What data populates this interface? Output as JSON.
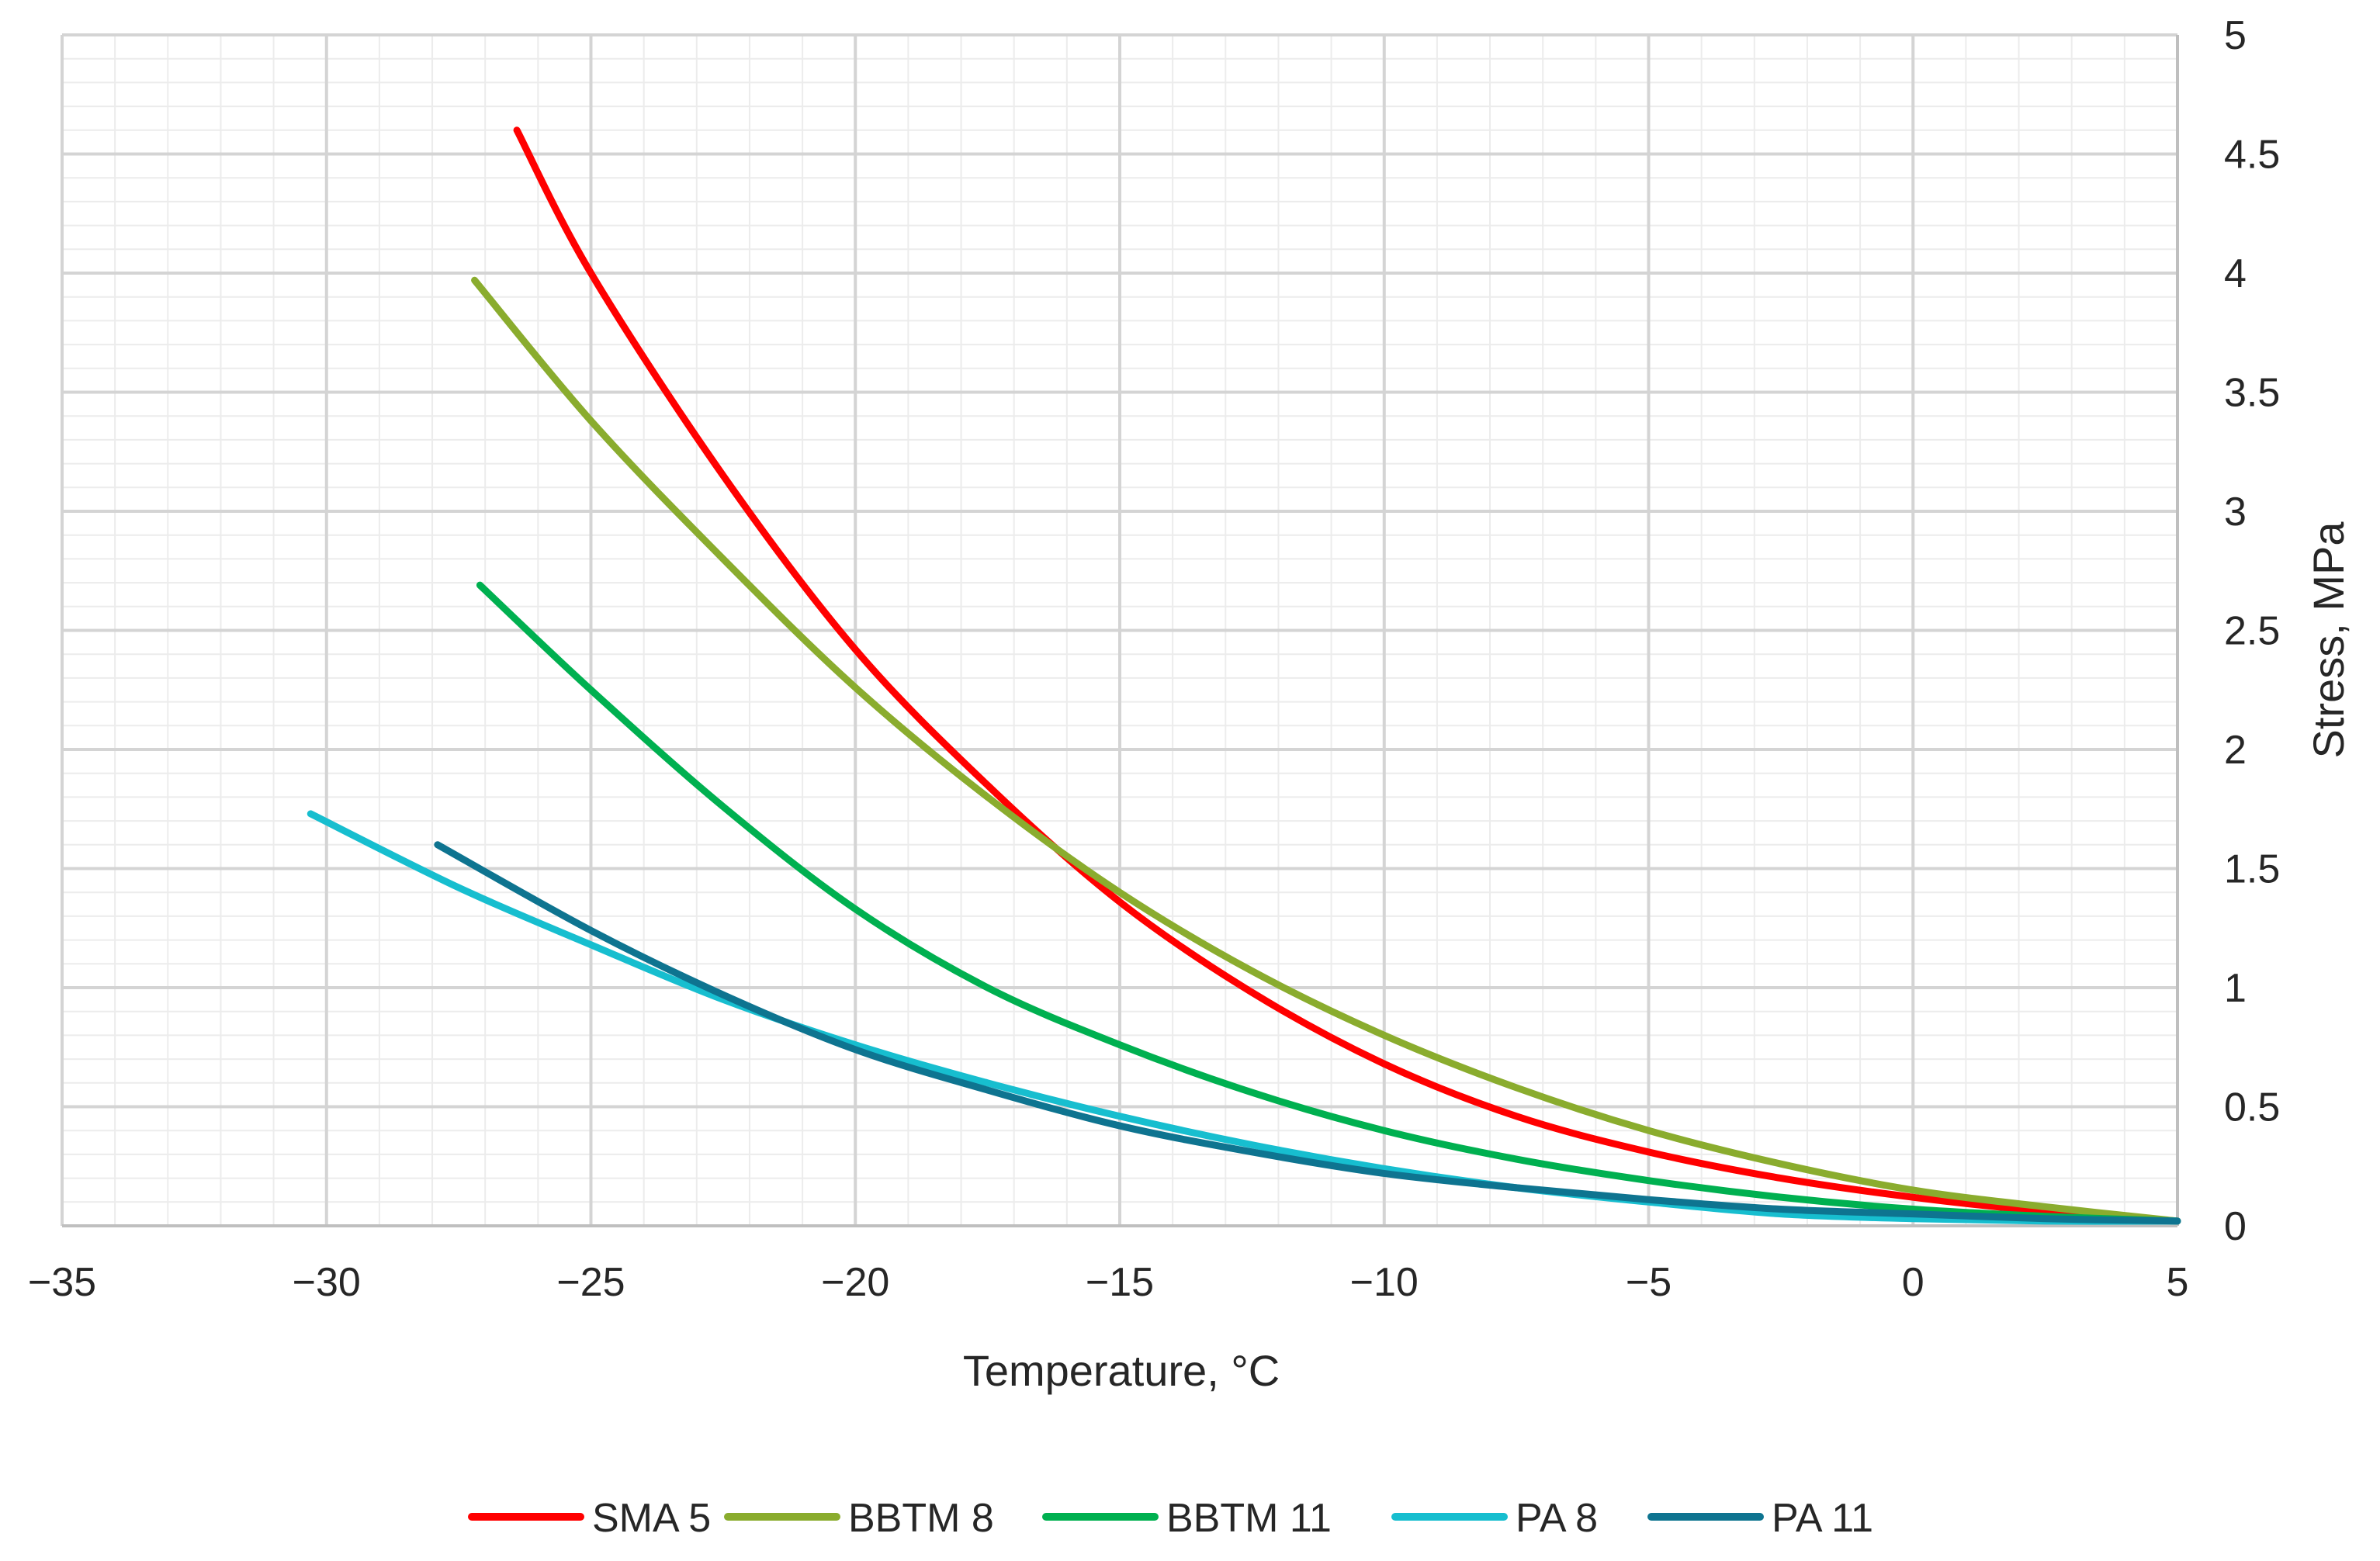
{
  "chart_data": {
    "type": "line",
    "title": "",
    "xlabel": "Temperature, °C",
    "ylabel": "Stress, MPa",
    "xlim": [
      -35,
      5
    ],
    "ylim": [
      0,
      5
    ],
    "x_ticks": [
      -35,
      -30,
      -25,
      -20,
      -15,
      -10,
      -5,
      0,
      5
    ],
    "x_tick_labels": [
      "−35",
      "−30",
      "−25",
      "−20",
      "−15",
      "−10",
      "−5",
      "0",
      "5"
    ],
    "y_ticks": [
      0,
      0.5,
      1,
      1.5,
      2,
      2.5,
      3,
      3.5,
      4,
      4.5,
      5
    ],
    "y_tick_labels": [
      "0",
      "0.5",
      "1",
      "1.5",
      "2",
      "2.5",
      "3",
      "3.5",
      "4",
      "4.5",
      "5"
    ],
    "y_axis_side": "right",
    "grid": true,
    "minor_grid": true,
    "legend_position": "bottom",
    "series": [
      {
        "name": "SMA 5",
        "color": "#ff0000",
        "x": [
          -26.4,
          -25,
          -22.5,
          -20,
          -17.5,
          -15,
          -12.5,
          -10,
          -7.5,
          -5,
          -2.5,
          0,
          2.5,
          5
        ],
        "y": [
          4.6,
          4.0,
          3.15,
          2.42,
          1.85,
          1.36,
          0.98,
          0.68,
          0.46,
          0.31,
          0.2,
          0.12,
          0.06,
          0.02
        ]
      },
      {
        "name": "BBTM 8",
        "color": "#8aac2e",
        "x": [
          -27.2,
          -25,
          -22.5,
          -20,
          -17.5,
          -15,
          -12.5,
          -10,
          -7.5,
          -5,
          -2.5,
          0,
          2.5,
          5
        ],
        "y": [
          3.97,
          3.38,
          2.8,
          2.26,
          1.8,
          1.4,
          1.07,
          0.8,
          0.58,
          0.4,
          0.26,
          0.15,
          0.08,
          0.02
        ]
      },
      {
        "name": "BBTM 11",
        "color": "#00b050",
        "x": [
          -27.1,
          -25,
          -22.5,
          -20,
          -17.5,
          -15,
          -12.5,
          -10,
          -7.5,
          -5,
          -2.5,
          0,
          2.5,
          5
        ],
        "y": [
          2.69,
          2.25,
          1.76,
          1.33,
          1.0,
          0.76,
          0.56,
          0.4,
          0.28,
          0.19,
          0.12,
          0.07,
          0.04,
          0.02
        ]
      },
      {
        "name": "PA 8",
        "color": "#17becf",
        "x": [
          -30.3,
          -27.5,
          -25,
          -22.5,
          -20,
          -17.5,
          -15,
          -12.5,
          -10,
          -7.5,
          -5,
          -2.5,
          0,
          2.5,
          5
        ],
        "y": [
          1.73,
          1.42,
          1.18,
          0.95,
          0.76,
          0.6,
          0.46,
          0.34,
          0.24,
          0.16,
          0.1,
          0.05,
          0.03,
          0.02,
          0.02
        ]
      },
      {
        "name": "PA 11",
        "color": "#0e7490",
        "x": [
          -27.9,
          -25,
          -22.5,
          -20,
          -17.5,
          -15,
          -12.5,
          -10,
          -7.5,
          -5,
          -2.5,
          0,
          2.5,
          5
        ],
        "y": [
          1.6,
          1.24,
          0.97,
          0.74,
          0.57,
          0.42,
          0.31,
          0.22,
          0.16,
          0.11,
          0.07,
          0.05,
          0.03,
          0.02
        ]
      }
    ]
  }
}
